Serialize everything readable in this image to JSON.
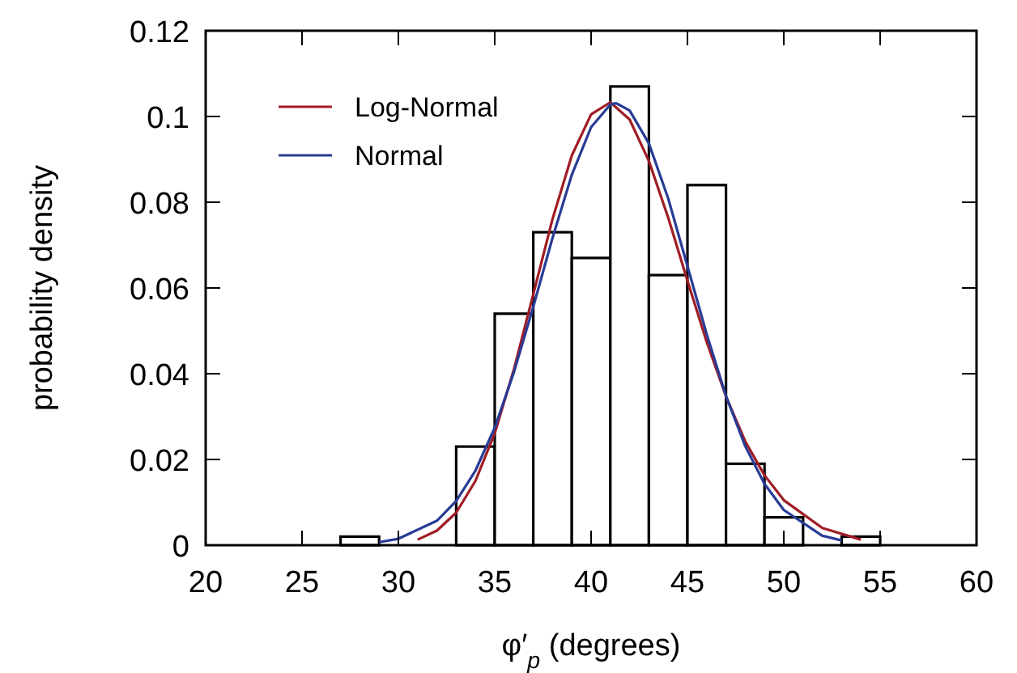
{
  "chart_data": {
    "type": "histogram",
    "xlabel": "φ′$_{p}$ (degrees)",
    "ylabel": "probability density",
    "bins": [
      27,
      29,
      31,
      33,
      35,
      37,
      39,
      41,
      43,
      45,
      47,
      49,
      51,
      53,
      55
    ],
    "values": [
      0.002,
      0,
      0,
      0.023,
      0.054,
      0.073,
      0.067,
      0.107,
      0.063,
      0.084,
      0.019,
      0.0065,
      0,
      0.002
    ],
    "color": "#000000",
    "series": [
      {
        "type": "line",
        "name": "Log-Normal",
        "color": "#a01c24",
        "x": [
          31,
          32,
          33,
          34,
          35,
          36,
          37,
          38,
          39,
          40,
          41,
          42,
          43,
          44,
          45,
          46,
          47,
          48,
          49,
          50,
          52,
          54
        ],
        "values": [
          0.0013,
          0.0034,
          0.0076,
          0.015,
          0.0261,
          0.0411,
          0.0585,
          0.0761,
          0.0909,
          0.1005,
          0.1033,
          0.0993,
          0.0896,
          0.0764,
          0.0617,
          0.0474,
          0.0347,
          0.0242,
          0.0163,
          0.0105,
          0.004,
          0.0013
        ]
      },
      {
        "type": "line",
        "name": "Normal",
        "color": "#283c96",
        "x": [
          29,
          30,
          32,
          33,
          34,
          35,
          36,
          37,
          38,
          39,
          40,
          41,
          41.3,
          42,
          43,
          44,
          45,
          46,
          47,
          48,
          49,
          50,
          52,
          53
        ],
        "values": [
          0.0007,
          0.0015,
          0.0057,
          0.0103,
          0.0174,
          0.0274,
          0.0404,
          0.0556,
          0.0717,
          0.0864,
          0.0975,
          0.1028,
          0.1031,
          0.1014,
          0.0937,
          0.0809,
          0.0651,
          0.0492,
          0.0348,
          0.0231,
          0.0143,
          0.0082,
          0.0022,
          0.0011
        ]
      }
    ],
    "xlim": [
      20,
      60
    ],
    "xticks": [
      20,
      25,
      30,
      35,
      40,
      45,
      50,
      55,
      60
    ],
    "ylim": [
      0,
      0.12
    ],
    "yticks": [
      0,
      0.02,
      0.04,
      0.06,
      0.08,
      0.1,
      0.12
    ],
    "grid": false,
    "legend": "top left",
    "line_style": "solid",
    "marker": "none"
  }
}
